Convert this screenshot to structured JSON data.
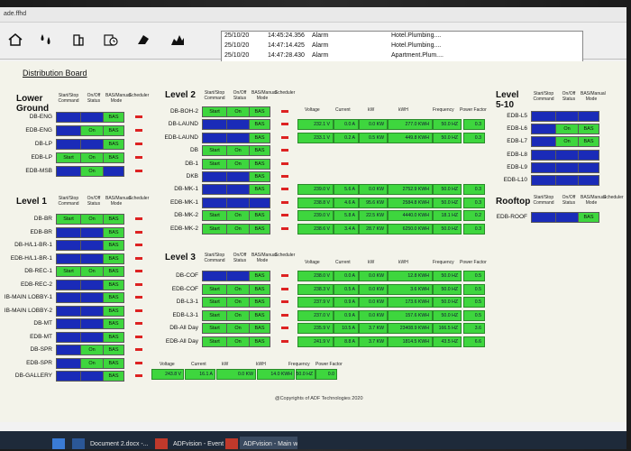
{
  "window": {
    "title": "ade.ffhd"
  },
  "alarms": [
    {
      "date": "25/10/20",
      "time": "14:45:24.356",
      "type": "Alarm",
      "message": "Hotel.Plumbing...."
    },
    {
      "date": "25/10/20",
      "time": "14:47:14.425",
      "type": "Alarm",
      "message": "Hotel.Plumbing...."
    },
    {
      "date": "25/10/20",
      "time": "14:47:28.430",
      "type": "Alarm",
      "message": "Apartment.Plum...."
    }
  ],
  "page_title": "Distribution Board",
  "headers": {
    "start_stop": "Start/Stop Command",
    "on_off": "On/Off Status",
    "bas_manual": "BAS/Manual Mode",
    "scheduler": "Scheduler",
    "voltage": "Voltage",
    "current": "Current",
    "kw": "kW",
    "kwh": "kWH",
    "frequency": "Frequency",
    "power_factor": "Power Factor"
  },
  "sections": {
    "lower_ground": "Lower Ground",
    "level1": "Level 1",
    "level2": "Level 2",
    "level3": "Level 3",
    "level5_10": "Level 5-10",
    "rooftop": "Rooftop"
  },
  "lower_ground_rows": [
    {
      "name": "DB-ENG",
      "start": "",
      "on": "",
      "bas": "BAS"
    },
    {
      "name": "EDB-ENG",
      "start": "",
      "on": "On",
      "bas": "BAS"
    },
    {
      "name": "DB-LP",
      "start": "",
      "on": "",
      "bas": "BAS"
    },
    {
      "name": "EDB-LP",
      "start": "Start",
      "on": "On",
      "bas": "BAS"
    },
    {
      "name": "EDB-MSB",
      "start": "",
      "on": "On",
      "bas": ""
    }
  ],
  "level1_rows": [
    {
      "name": "DB-BR",
      "start": "Start",
      "on": "On",
      "bas": "BAS"
    },
    {
      "name": "EDB-BR",
      "start": "",
      "on": "",
      "bas": "BAS"
    },
    {
      "name": "DB-H/L1-BR-1",
      "start": "",
      "on": "",
      "bas": "BAS"
    },
    {
      "name": "EDB-H/L1-BR-1",
      "start": "",
      "on": "",
      "bas": "BAS"
    },
    {
      "name": "DB-REC-1",
      "start": "Start",
      "on": "On",
      "bas": "BAS"
    },
    {
      "name": "EDB-REC-2",
      "start": "",
      "on": "",
      "bas": "BAS"
    },
    {
      "name": "IB-MAIN LOBBY-1",
      "start": "",
      "on": "",
      "bas": "BAS"
    },
    {
      "name": "IB-MAIN LOBBY-2",
      "start": "",
      "on": "",
      "bas": "BAS"
    },
    {
      "name": "DB-MT",
      "start": "",
      "on": "",
      "bas": "BAS"
    },
    {
      "name": "EDB-MT",
      "start": "",
      "on": "",
      "bas": "BAS"
    },
    {
      "name": "DB-SPR",
      "start": "",
      "on": "On",
      "bas": "BAS"
    },
    {
      "name": "EDB-SPR",
      "start": "",
      "on": "On",
      "bas": "BAS"
    },
    {
      "name": "DB-GALLERY",
      "start": "",
      "on": "",
      "bas": "BAS"
    }
  ],
  "level2_rows": [
    {
      "name": "DB-BOH-2",
      "start": "Start",
      "on": "On",
      "bas": "BAS",
      "meter": null
    },
    {
      "name": "DB-LAUND",
      "start": "",
      "on": "",
      "bas": "BAS",
      "meter": {
        "v": "232.1",
        "a": "0.0",
        "kw": "0.0",
        "kwh": "277.0",
        "hz": "50.0",
        "pf": "0.3"
      }
    },
    {
      "name": "EDB-LAUND",
      "start": "",
      "on": "",
      "bas": "BAS",
      "meter": {
        "v": "233.1",
        "a": "0.2",
        "kw": "0.5",
        "kwh": "449.8",
        "hz": "50.0",
        "pf": "0.3"
      }
    },
    {
      "name": "DB",
      "start": "Start",
      "on": "On",
      "bas": "BAS",
      "meter": null
    },
    {
      "name": "DB-1",
      "start": "Start",
      "on": "On",
      "bas": "BAS",
      "meter": null
    },
    {
      "name": "DKB",
      "start": "",
      "on": "",
      "bas": "BAS",
      "meter": null
    },
    {
      "name": "DB-MK-1",
      "start": "",
      "on": "",
      "bas": "BAS",
      "meter": {
        "v": "239.0",
        "a": "5.6",
        "kw": "0.0",
        "kwh": "2752.9",
        "hz": "50.0",
        "pf": "0.3"
      }
    },
    {
      "name": "EDB-MK-1",
      "start": "",
      "on": "",
      "bas": "",
      "meter": {
        "v": "238.8",
        "a": "4.6",
        "kw": "95.6",
        "kwh": "2584.8",
        "hz": "50.0",
        "pf": "0.3"
      }
    },
    {
      "name": "DB-MK-2",
      "start": "Start",
      "on": "On",
      "bas": "BAS",
      "meter": {
        "v": "239.0",
        "a": "5.8",
        "kw": "22.5",
        "kwh": "4440.0",
        "hz": "18.1",
        "pf": "0.2"
      }
    },
    {
      "name": "EDB-MK-2",
      "start": "Start",
      "on": "On",
      "bas": "BAS",
      "meter": {
        "v": "238.6",
        "a": "3.4",
        "kw": "28.7",
        "kwh": "6250.0",
        "hz": "50.0",
        "pf": "0.3"
      }
    }
  ],
  "level3_rows": [
    {
      "name": "DB-COF",
      "start": "",
      "on": "",
      "bas": "BAS",
      "meter": {
        "v": "238.0",
        "a": "0.0",
        "kw": "0.0",
        "kwh": "12.8",
        "hz": "50.0",
        "pf": "0.5"
      }
    },
    {
      "name": "EDB-COF",
      "start": "Start",
      "on": "On",
      "bas": "BAS",
      "meter": {
        "v": "238.3",
        "a": "0.5",
        "kw": "0.0",
        "kwh": "3.6",
        "hz": "50.0",
        "pf": "0.5"
      }
    },
    {
      "name": "DB-L3-1",
      "start": "Start",
      "on": "On",
      "bas": "BAS",
      "meter": {
        "v": "237.9",
        "a": "0.9",
        "kw": "0.0",
        "kwh": "173.6",
        "hz": "50.0",
        "pf": "0.5"
      }
    },
    {
      "name": "EDB-L3-1",
      "start": "Start",
      "on": "On",
      "bas": "BAS",
      "meter": {
        "v": "237.0",
        "a": "0.9",
        "kw": "0.0",
        "kwh": "157.6",
        "hz": "50.0",
        "pf": "0.5"
      }
    },
    {
      "name": "DB-All Day",
      "start": "Start",
      "on": "On",
      "bas": "BAS",
      "meter": {
        "v": "235.9",
        "a": "10.5",
        "kw": "3.7",
        "kwh": "23408.9",
        "hz": "166.5",
        "pf": "3.6"
      }
    },
    {
      "name": "EDB-All Day",
      "start": "Start",
      "on": "On",
      "bas": "BAS",
      "meter": {
        "v": "241.9",
        "a": "8.8",
        "kw": "3.7",
        "kwh": "1814.5",
        "hz": "43.5",
        "pf": "6.6"
      }
    }
  ],
  "bottom_meter": {
    "v": "243.8",
    "a": "16.1",
    "kw": "0.0",
    "kwh": "14.0",
    "hz": "50.0",
    "pf": "0.0"
  },
  "level5_rows": [
    {
      "name": "EDB-L5",
      "start": "",
      "on": "",
      "bas": ""
    },
    {
      "name": "EDB-L6",
      "start": "",
      "on": "On",
      "bas": "BAS"
    },
    {
      "name": "EDB-L7",
      "start": "",
      "on": "On",
      "bas": "BAS"
    },
    {
      "name": "EDB-L8",
      "start": "",
      "on": "",
      "bas": ""
    },
    {
      "name": "EDB-L9",
      "start": "",
      "on": "",
      "bas": ""
    },
    {
      "name": "EDB-L10",
      "start": "",
      "on": "",
      "bas": ""
    }
  ],
  "rooftop_rows": [
    {
      "name": "EDB-ROOF",
      "start": "",
      "on": "",
      "bas": "BAS"
    }
  ],
  "units": {
    "v": "V",
    "a": "A",
    "kw": "KW",
    "kwh": "KWH",
    "hz": "HZ"
  },
  "copyright": "@Copyrights of ADF Technologies 2020",
  "taskbar": {
    "items": [
      "Document 2.docx -...",
      "ADFvision - Event v...",
      "ADFvision - Main w..."
    ]
  },
  "colors": {
    "on": "#3ed63e",
    "off": "#1a2bb8",
    "scheduler": "#d22222"
  }
}
